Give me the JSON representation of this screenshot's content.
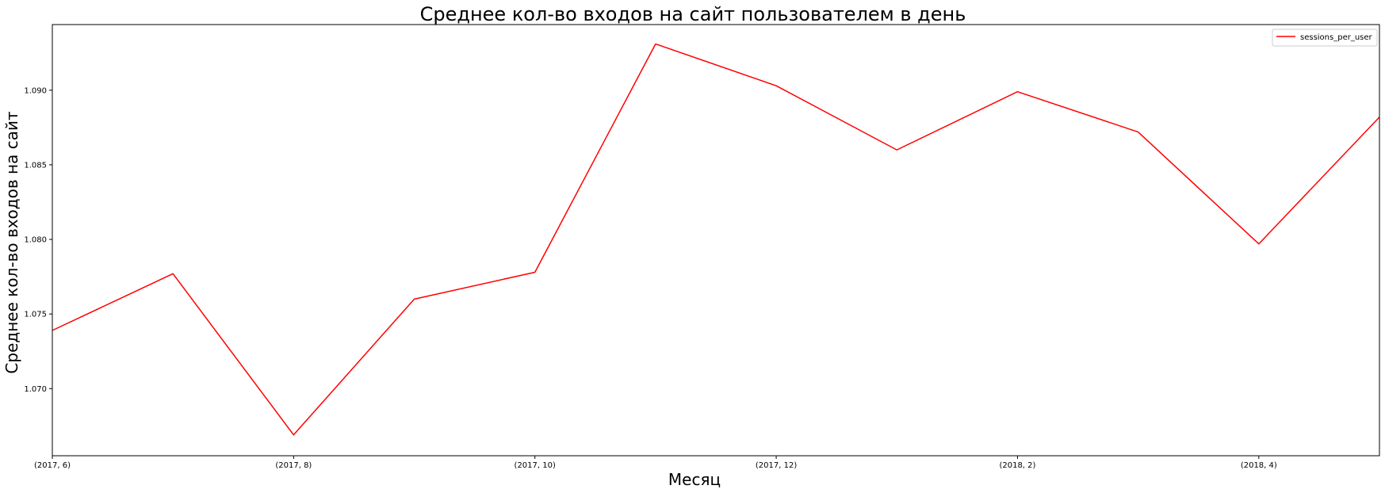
{
  "chart_data": {
    "type": "line",
    "title": "Среднее кол-во входов на сайт пользователем в день",
    "xlabel": "Месяц",
    "ylabel": "Среднее кол-во входов на сайт",
    "x": [
      0,
      1,
      2,
      3,
      4,
      5,
      6,
      7,
      8,
      9,
      10,
      11
    ],
    "xticks": [
      {
        "x": 0,
        "label": "(2017, 6)"
      },
      {
        "x": 2,
        "label": "(2017, 8)"
      },
      {
        "x": 4,
        "label": "(2017, 10)"
      },
      {
        "x": 6,
        "label": "(2017, 12)"
      },
      {
        "x": 8,
        "label": "(2018, 2)"
      },
      {
        "x": 10,
        "label": "(2018, 4)"
      }
    ],
    "yticks": [
      1.07,
      1.075,
      1.08,
      1.085,
      1.09
    ],
    "ytick_labels": [
      "1.070",
      "1.075",
      "1.080",
      "1.085",
      "1.090"
    ],
    "xlim": [
      0,
      11
    ],
    "ylim": [
      1.0655,
      1.0944
    ],
    "series": [
      {
        "name": "sessions_per_user",
        "color": "#ff0000",
        "values": [
          1.0739,
          1.0777,
          1.0669,
          1.076,
          1.0778,
          1.0931,
          1.0903,
          1.086,
          1.0899,
          1.0872,
          1.0797,
          1.0882
        ]
      }
    ],
    "legend": "top-right",
    "grid": false
  }
}
